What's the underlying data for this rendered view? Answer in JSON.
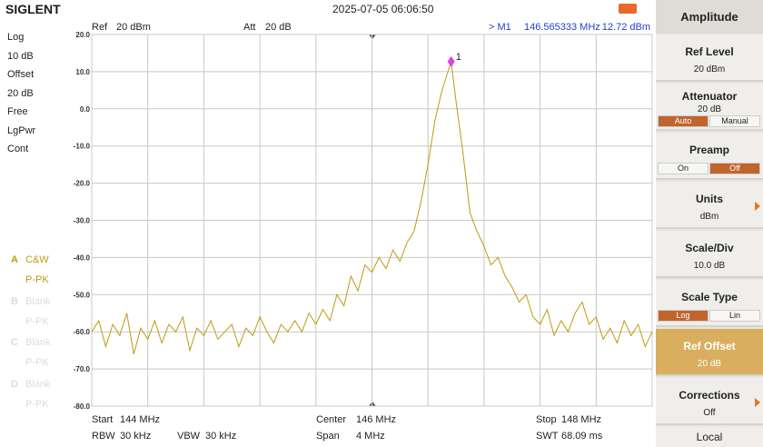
{
  "header": {
    "brand": "SIGLENT",
    "datetime": "2025-07-05 06:06:50"
  },
  "left_panel": {
    "items": [
      "Log",
      "10 dB",
      "Offset",
      "20 dB",
      "Free",
      "LgPwr",
      "Cont"
    ]
  },
  "traces": [
    {
      "letter": "A",
      "mode": "C&W",
      "detector": "P-PK",
      "active": true
    },
    {
      "letter": "B",
      "mode": "Blank",
      "detector": "P-PK",
      "active": false
    },
    {
      "letter": "C",
      "mode": "Blank",
      "detector": "P-PK",
      "active": false
    },
    {
      "letter": "D",
      "mode": "Blank",
      "detector": "P-PK",
      "active": false
    }
  ],
  "chart_data": {
    "type": "line",
    "ref_label": "Ref",
    "ref_value": "20 dBm",
    "att_label": "Att",
    "att_value": "20 dB",
    "marker": {
      "readout_name": "> M1",
      "readout_freq": "146.565333 MHz",
      "readout_level": "12.72 dBm",
      "label": "1",
      "x": 146.565333,
      "value": 12.72,
      "color": "#e43de4"
    },
    "color": "#bf9a10",
    "grid": true,
    "xlim": [
      144,
      148
    ],
    "ylim": [
      -80,
      20
    ],
    "xticks": [
      144,
      144.4,
      144.8,
      145.2,
      145.6,
      146,
      146.4,
      146.8,
      147.2,
      147.6,
      148
    ],
    "yticks": [
      {
        "value": 20,
        "label": "20.0"
      },
      {
        "value": 10,
        "label": "10.0"
      },
      {
        "value": 0,
        "label": "0.0"
      },
      {
        "value": -10,
        "label": "-10.0"
      },
      {
        "value": -20,
        "label": "-20.0"
      },
      {
        "value": -30,
        "label": "-30.0"
      },
      {
        "value": -40,
        "label": "-40.0"
      },
      {
        "value": -50,
        "label": "-50.0"
      },
      {
        "value": -60,
        "label": "-60.0"
      },
      {
        "value": -70,
        "label": "-70.0"
      },
      {
        "value": -80,
        "label": "-80.0"
      }
    ],
    "x": [
      144,
      144.05,
      144.1,
      144.15,
      144.2,
      144.25,
      144.3,
      144.35,
      144.4,
      144.45,
      144.5,
      144.55,
      144.6,
      144.65,
      144.7,
      144.75,
      144.8,
      144.85,
      144.9,
      144.95,
      145,
      145.05,
      145.1,
      145.15,
      145.2,
      145.25,
      145.3,
      145.35,
      145.4,
      145.45,
      145.5,
      145.55,
      145.6,
      145.65,
      145.7,
      145.75,
      145.8,
      145.85,
      145.9,
      145.95,
      146,
      146.05,
      146.1,
      146.15,
      146.2,
      146.25,
      146.3,
      146.35,
      146.4,
      146.45,
      146.5,
      146.565,
      146.6,
      146.65,
      146.7,
      146.75,
      146.8,
      146.85,
      146.9,
      146.95,
      147,
      147.05,
      147.1,
      147.15,
      147.2,
      147.25,
      147.3,
      147.35,
      147.4,
      147.45,
      147.5,
      147.55,
      147.6,
      147.65,
      147.7,
      147.75,
      147.8,
      147.85,
      147.9,
      147.95,
      148
    ],
    "values": [
      -60,
      -57,
      -64,
      -58,
      -61,
      -55,
      -66,
      -59,
      -62,
      -57,
      -63,
      -58,
      -60,
      -56,
      -65,
      -59,
      -61,
      -57,
      -62,
      -60,
      -58,
      -64,
      -59,
      -61,
      -56,
      -60,
      -63,
      -58,
      -60,
      -57,
      -60,
      -55,
      -58,
      -54,
      -57,
      -50,
      -53,
      -45,
      -49,
      -42,
      -44,
      -40,
      -43,
      -38,
      -41,
      -36,
      -33,
      -25,
      -15,
      -3,
      5,
      12.72,
      2,
      -12,
      -28,
      -33,
      -37,
      -42,
      -40,
      -45,
      -48,
      -52,
      -50,
      -56,
      -58,
      -54,
      -61,
      -57,
      -60,
      -55,
      -52,
      -58,
      -56,
      -62,
      -59,
      -63,
      -57,
      -61,
      -58,
      -64,
      -60
    ]
  },
  "footer": {
    "rows": [
      [
        {
          "label": "Start",
          "value": "144 MHz"
        },
        {
          "label": "Center",
          "value": "146 MHz"
        },
        {
          "label": "Stop",
          "value": "148 MHz"
        }
      ],
      [
        {
          "label": "RBW",
          "value": "30 kHz"
        },
        {
          "label": "VBW",
          "value": "30 kHz"
        },
        {
          "label": "Span",
          "value": "4 MHz"
        },
        {
          "label": "SWT",
          "value": "68.09 ms"
        }
      ]
    ]
  },
  "menu": {
    "title": "Amplitude",
    "buttons": [
      {
        "label": "Ref Level",
        "value": "20 dBm"
      },
      {
        "label": "Attenuator",
        "value": "20 dB",
        "options": [
          "Auto",
          "Manual"
        ],
        "selected": 0
      },
      {
        "label": "Preamp",
        "options": [
          "On",
          "Off"
        ],
        "selected": 1
      },
      {
        "label": "Units",
        "value": "dBm",
        "arrow": true
      },
      {
        "label": "Scale/Div",
        "value": "10.0 dB"
      },
      {
        "label": "Scale Type",
        "options": [
          "Log",
          "Lin"
        ],
        "selected": 0
      },
      {
        "label": "Ref Offset",
        "value": "20 dB",
        "highlight": true
      },
      {
        "label": "Corrections",
        "value": "Off",
        "arrow": true
      }
    ],
    "footer": "Local"
  }
}
